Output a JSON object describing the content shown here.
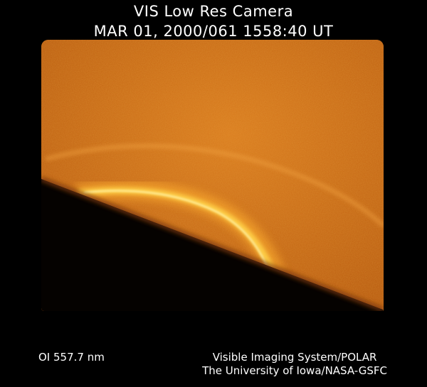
{
  "header": {
    "line1": "VIS Low Res Camera",
    "line2": "MAR 01, 2000/061 1558:40 UT"
  },
  "image": {
    "subject": "auroral-oval-earth-limb",
    "colors": {
      "background": "#000000",
      "sky_glow": "#c0600f",
      "sky_bright": "#d97a1c",
      "aurora": "#ffd24a",
      "aurora_core": "#fff0a0",
      "shadow": "#050200"
    }
  },
  "footer": {
    "filter": "OI  557.7 nm",
    "credit_line1": "Visible Imaging System/POLAR",
    "credit_line2": "The University of Iowa/NASA-GSFC"
  }
}
